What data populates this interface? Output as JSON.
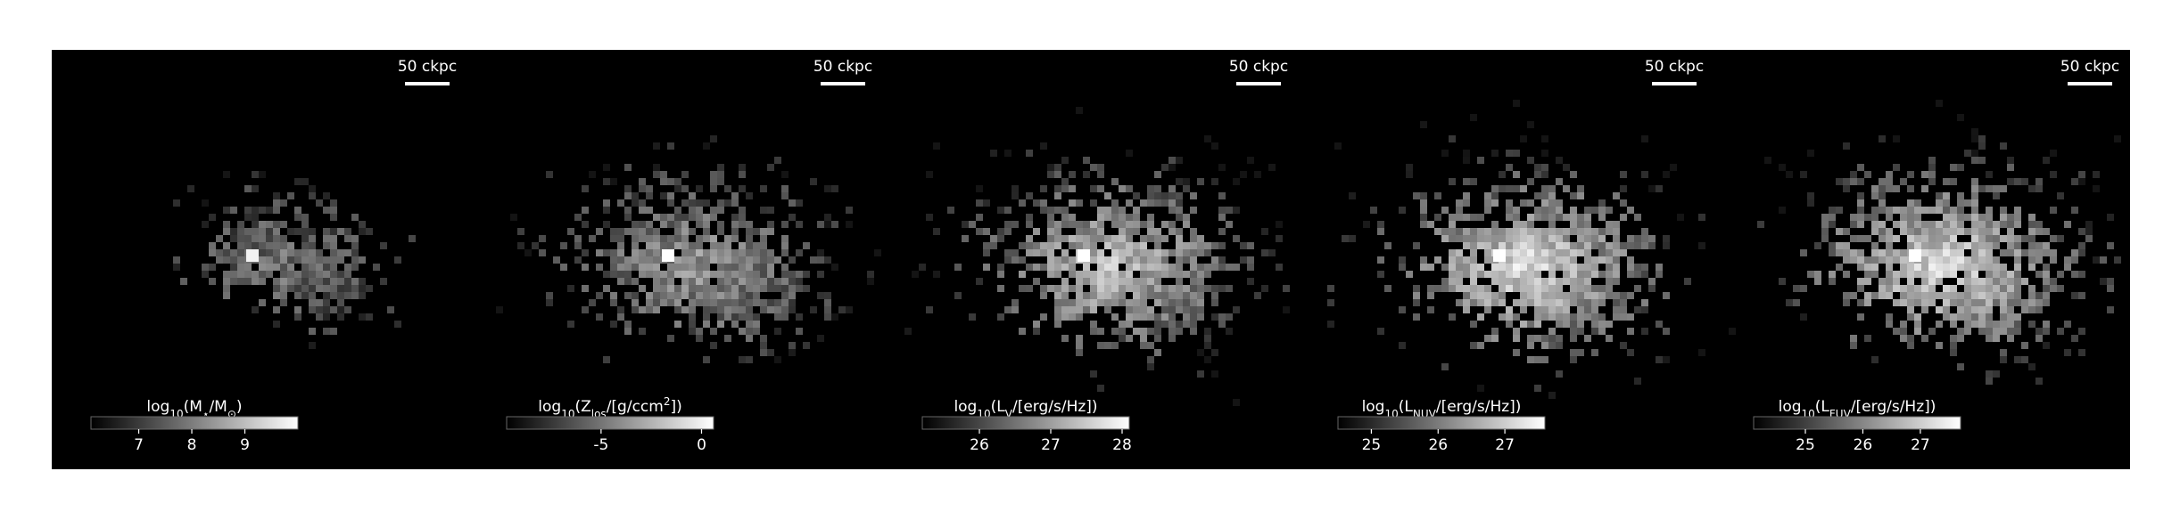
{
  "panels": [
    {
      "scalebar": "50 ckpc",
      "label": [
        {
          "t": "log"
        },
        {
          "t": "10",
          "sub": true
        },
        {
          "t": "(M"
        },
        {
          "t": "⋆",
          "sub": true
        },
        {
          "t": "/M"
        },
        {
          "t": "⊙",
          "sub": true
        },
        {
          "t": ")"
        }
      ],
      "clim": [
        6.1,
        10.0
      ],
      "ticks": [
        7,
        8,
        9
      ]
    },
    {
      "scalebar": "50 ckpc",
      "label": [
        {
          "t": "log"
        },
        {
          "t": "10",
          "sub": true
        },
        {
          "t": "(Z"
        },
        {
          "t": "los",
          "sub": true
        },
        {
          "t": "/[g/ccm"
        },
        {
          "t": "2",
          "sup": true
        },
        {
          "t": "])"
        }
      ],
      "clim": [
        -9.7,
        0.6
      ],
      "ticks": [
        -5,
        0
      ]
    },
    {
      "scalebar": "50 ckpc",
      "label": [
        {
          "t": "log"
        },
        {
          "t": "10",
          "sub": true
        },
        {
          "t": "(L"
        },
        {
          "t": "V",
          "sub": true
        },
        {
          "t": "/[erg/s/Hz])"
        }
      ],
      "clim": [
        25.2,
        28.1
      ],
      "ticks": [
        26,
        27,
        28
      ]
    },
    {
      "scalebar": "50 ckpc",
      "label": [
        {
          "t": "log"
        },
        {
          "t": "10",
          "sub": true
        },
        {
          "t": "(L"
        },
        {
          "t": "NUV",
          "sub": true
        },
        {
          "t": "/[erg/s/Hz])"
        }
      ],
      "clim": [
        24.5,
        27.6
      ],
      "ticks": [
        25,
        26,
        27
      ]
    },
    {
      "scalebar": "50 ckpc",
      "label": [
        {
          "t": "log"
        },
        {
          "t": "10",
          "sub": true
        },
        {
          "t": "(L"
        },
        {
          "t": "FUV",
          "sub": true
        },
        {
          "t": "/[erg/s/Hz])"
        }
      ],
      "clim": [
        24.1,
        27.7
      ],
      "ticks": [
        25,
        26,
        27
      ]
    }
  ]
}
